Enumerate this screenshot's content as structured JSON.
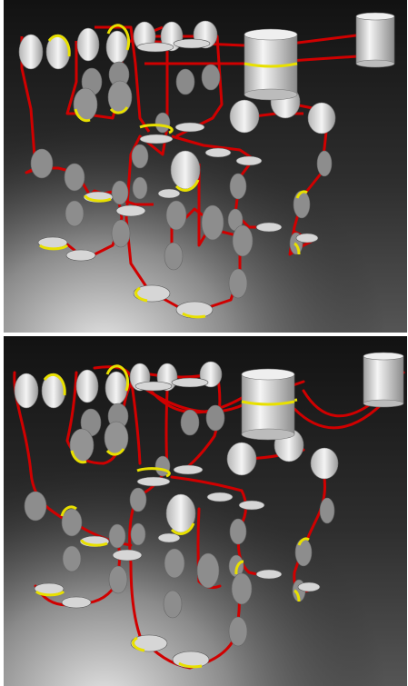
{
  "figure": {
    "panels": [
      {
        "id": "top",
        "belt": "taut",
        "background": "#1c1c1c"
      },
      {
        "id": "bottom",
        "belt": "sagging",
        "background": "#1c1c1c"
      }
    ],
    "colors": {
      "belt": "#d00000",
      "belt_highlight": "#ff3a3a",
      "pulley_face": "#efefef",
      "pulley_shade": "#a8a8a8",
      "contact_band": "#e8e000",
      "floor_light": "#d8d8d8"
    }
  }
}
